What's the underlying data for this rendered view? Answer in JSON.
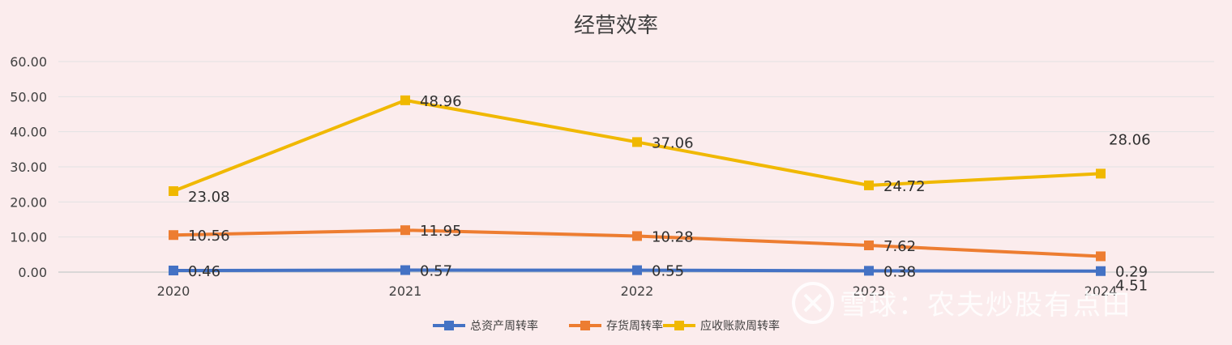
{
  "chart_data": {
    "type": "line",
    "title": "经营效率",
    "xlabel": "",
    "ylabel": "",
    "categories": [
      "2020",
      "2021",
      "2022",
      "2023",
      "2024"
    ],
    "ylim": [
      0,
      60
    ],
    "yticks": [
      "0.00",
      "10.00",
      "20.00",
      "30.00",
      "40.00",
      "50.00",
      "60.00"
    ],
    "grid": true,
    "legend_position": "bottom",
    "series": [
      {
        "name": "总资产周转率",
        "color": "#4472c4",
        "values": [
          0.46,
          0.57,
          0.55,
          0.38,
          0.29
        ],
        "labels": [
          "0.46",
          "0.57",
          "0.55",
          "0.38",
          "0.29"
        ]
      },
      {
        "name": "存货周转率",
        "color": "#ed7d31",
        "values": [
          10.56,
          11.95,
          10.28,
          7.62,
          4.51
        ],
        "labels": [
          "10.56",
          "11.95",
          "10.28",
          "7.62",
          "4.51"
        ]
      },
      {
        "name": "应收账款周转率",
        "color": "#f0b800",
        "values": [
          23.08,
          48.96,
          37.06,
          24.72,
          28.06
        ],
        "labels": [
          "23.08",
          "48.96",
          "37.06",
          "24.72",
          "28.06"
        ]
      }
    ]
  },
  "watermark": {
    "text": "雪球：农夫炒股有点田",
    "icon": "snowball-logo-icon"
  }
}
